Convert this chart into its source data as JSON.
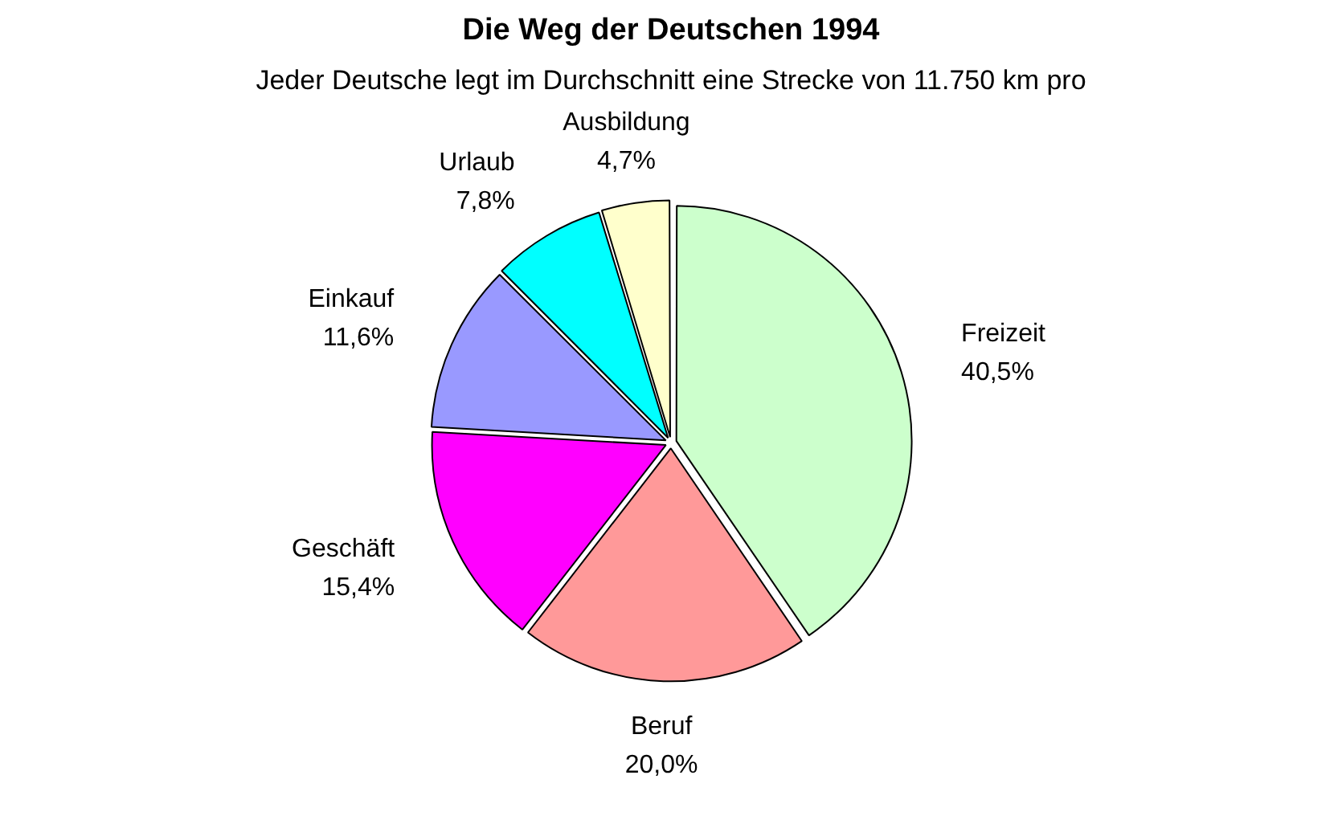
{
  "chart_data": {
    "type": "pie",
    "title": "Die Weg der Deutschen 1994",
    "subtitle": "Jeder Deutsche legt im Durchschnitt eine Strecke von 11.750 km pro",
    "categories": [
      "Freizeit",
      "Beruf",
      "Geschäft",
      "Einkauf",
      "Urlaub",
      "Ausbildung"
    ],
    "values": [
      40.5,
      20.0,
      15.4,
      11.6,
      7.8,
      4.7
    ],
    "value_labels": [
      "40,5%",
      "20,0%",
      "15,4%",
      "11,6%",
      "7,8%",
      "4,7%"
    ],
    "colors": [
      "#ccffcc",
      "#ff9999",
      "#ff00ff",
      "#9999ff",
      "#00ffff",
      "#ffffcc"
    ],
    "legend": false
  }
}
